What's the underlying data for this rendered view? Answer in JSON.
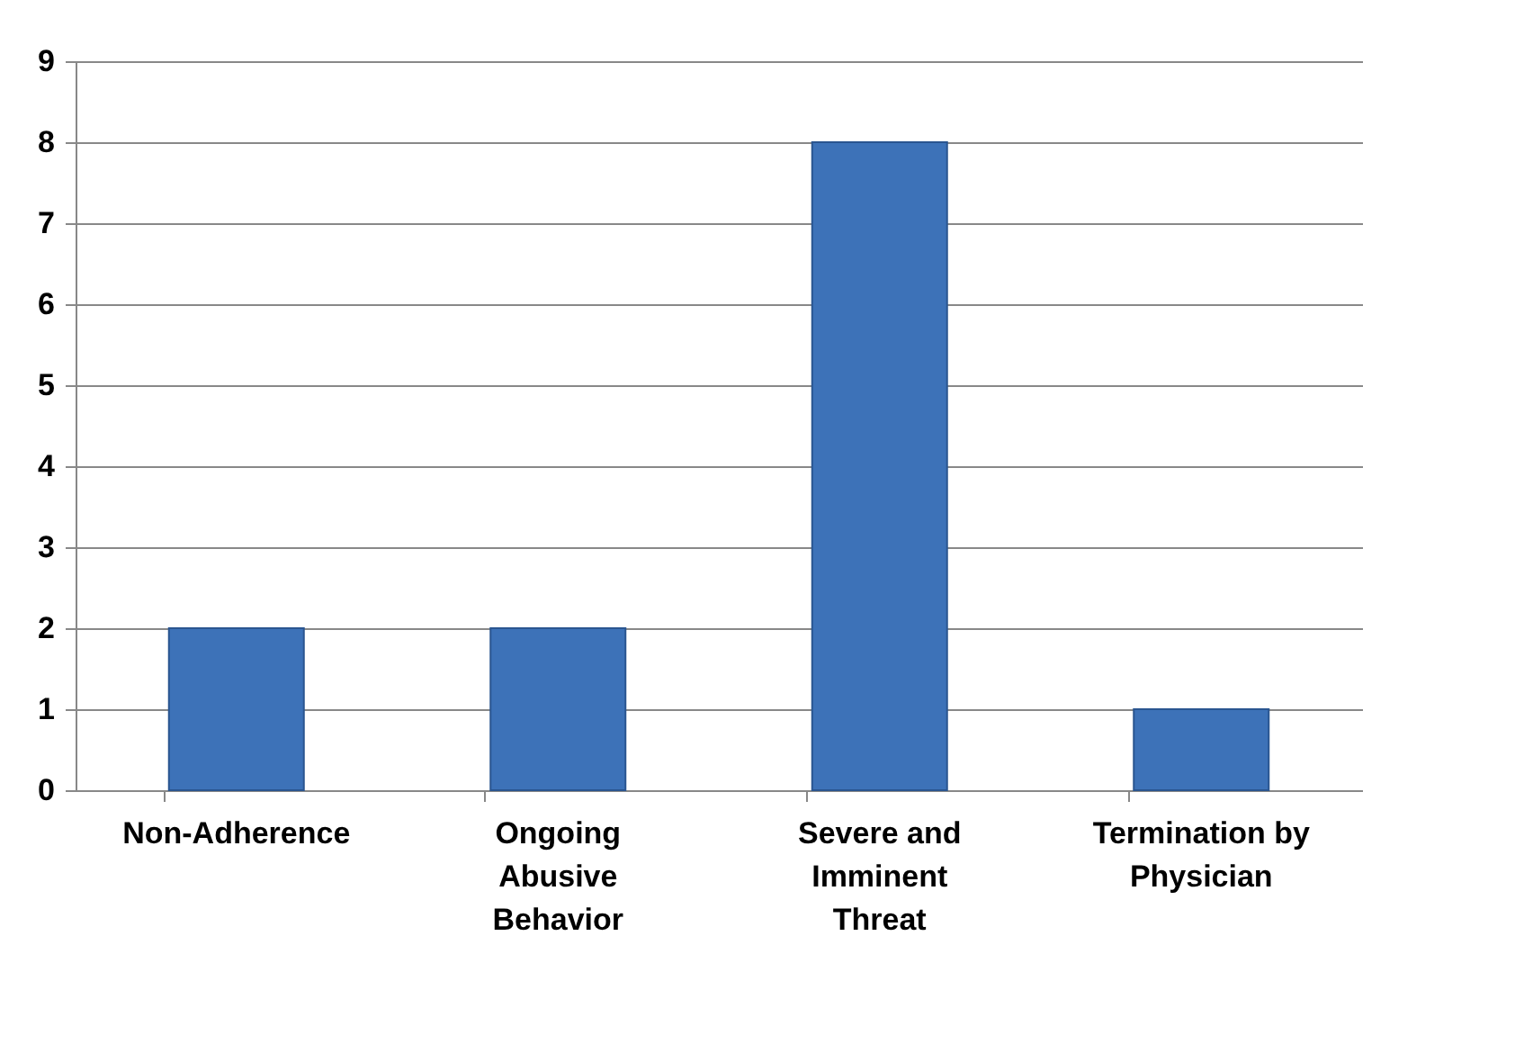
{
  "chart_data": {
    "type": "bar",
    "categories": [
      "Non-Adherence",
      "Ongoing Abusive Behavior",
      "Severe and Imminent Threat",
      "Termination by Physician"
    ],
    "values": [
      2,
      2,
      8,
      1
    ],
    "color": "#3d72b8",
    "ylim": [
      0,
      9
    ],
    "yticks": [
      0,
      1,
      2,
      3,
      4,
      5,
      6,
      7,
      8,
      9
    ],
    "grid": "y"
  }
}
